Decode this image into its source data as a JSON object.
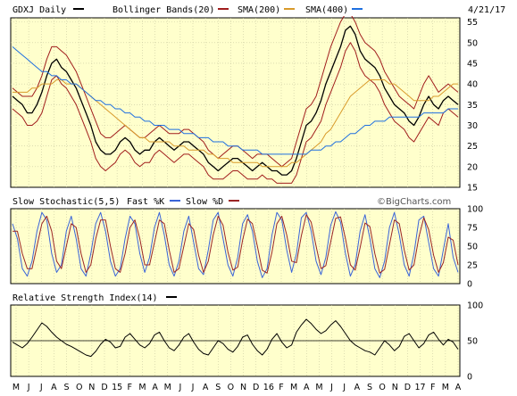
{
  "colors": {
    "plot_bg": "#ffffcc",
    "grid": "#c8c8a0",
    "price": "#000000",
    "bollinger": "#a01c1c",
    "sma200": "#d89a2a",
    "sma400": "#1e6fe0",
    "stoch_fast": "#3a64d8",
    "stoch_slow": "#9b2525",
    "rsi": "#000000"
  },
  "header": {
    "symbol": "GDXJ Daily",
    "bollinger": "Bollinger Bands(20)",
    "sma200": "SMA(200)",
    "sma400": "SMA(400)",
    "date": "4/21/17"
  },
  "stochastic_header": {
    "title": "Slow Stochastic(5,5)",
    "fast": "Fast %K",
    "slow": "Slow %D",
    "watermark": "©BigCharts.com"
  },
  "rsi_header": {
    "title": "Relative Strength Index(14)"
  },
  "x_axis_labels": [
    "M",
    "J",
    "J",
    "A",
    "S",
    "O",
    "N",
    "D",
    "15",
    "F",
    "M",
    "A",
    "M",
    "J",
    "J",
    "A",
    "S",
    "O",
    "N",
    "D",
    "16",
    "F",
    "M",
    "A",
    "M",
    "J",
    "J",
    "A",
    "S",
    "O",
    "N",
    "D",
    "17",
    "F",
    "M",
    "A"
  ],
  "chart_data": [
    {
      "type": "line",
      "panel": "price",
      "y_ticks": [
        15,
        20,
        25,
        30,
        35,
        40,
        45,
        50,
        55
      ],
      "ylim": [
        15,
        56
      ],
      "series": [
        {
          "name": "GDXJ Daily",
          "values": [
            37,
            36,
            35,
            33,
            33,
            35,
            38,
            42,
            45,
            46,
            44,
            43,
            41,
            39,
            36,
            33,
            30,
            26,
            24,
            23,
            23,
            24,
            26,
            27,
            26,
            24,
            23,
            24,
            24,
            26,
            27,
            26,
            25,
            24,
            25,
            26,
            26,
            25,
            24,
            23,
            21,
            20,
            19,
            20,
            21,
            22,
            22,
            21,
            20,
            19,
            20,
            21,
            20,
            19,
            19,
            18,
            18,
            19,
            22,
            26,
            30,
            31,
            33,
            36,
            40,
            43,
            46,
            49,
            53,
            54,
            52,
            48,
            46,
            45,
            44,
            42,
            39,
            37,
            35,
            34,
            33,
            31,
            30,
            32,
            35,
            37,
            35,
            34,
            36,
            37,
            36,
            35
          ]
        },
        {
          "name": "Bollinger Bands(20)",
          "values": [
            39,
            38,
            37,
            37,
            37,
            39,
            42,
            46,
            49,
            49,
            48,
            47,
            45,
            43,
            40,
            37,
            34,
            31,
            28,
            27,
            27,
            28,
            29,
            30,
            29,
            28,
            27,
            27,
            28,
            29,
            30,
            29,
            28,
            28,
            28,
            29,
            29,
            28,
            27,
            26,
            24,
            23,
            22,
            23,
            24,
            25,
            25,
            24,
            23,
            22,
            23,
            23,
            23,
            22,
            21,
            20,
            21,
            22,
            26,
            30,
            34,
            35,
            37,
            41,
            45,
            49,
            52,
            55,
            57,
            57,
            55,
            52,
            50,
            49,
            48,
            46,
            43,
            41,
            39,
            37,
            36,
            35,
            34,
            37,
            40,
            42,
            40,
            38,
            39,
            40,
            39,
            38
          ]
        },
        {
          "name": "Bollinger Bands(20)",
          "values": [
            34,
            33,
            32,
            30,
            30,
            31,
            33,
            37,
            41,
            42,
            40,
            39,
            37,
            35,
            32,
            29,
            26,
            22,
            20,
            19,
            20,
            21,
            23,
            24,
            23,
            21,
            20,
            21,
            21,
            23,
            24,
            23,
            22,
            21,
            22,
            23,
            23,
            22,
            21,
            20,
            18,
            17,
            17,
            17,
            18,
            19,
            19,
            18,
            17,
            17,
            17,
            18,
            17,
            17,
            16,
            16,
            16,
            16,
            18,
            22,
            26,
            27,
            29,
            31,
            35,
            38,
            41,
            44,
            48,
            50,
            48,
            44,
            42,
            41,
            40,
            38,
            35,
            33,
            31,
            30,
            29,
            27,
            26,
            28,
            30,
            32,
            31,
            30,
            33,
            34,
            33,
            32
          ]
        },
        {
          "name": "SMA(200)",
          "values": [
            38,
            38,
            38,
            38,
            39,
            39,
            40,
            40,
            40,
            41,
            41,
            40,
            40,
            40,
            39,
            38,
            37,
            36,
            35,
            34,
            33,
            32,
            31,
            30,
            29,
            28,
            27,
            27,
            26,
            26,
            26,
            26,
            26,
            25,
            25,
            25,
            24,
            24,
            24,
            24,
            23,
            23,
            22,
            22,
            22,
            21,
            21,
            21,
            21,
            21,
            21,
            20,
            20,
            20,
            20,
            20,
            20,
            21,
            21,
            22,
            23,
            24,
            25,
            26,
            28,
            29,
            31,
            33,
            35,
            37,
            38,
            39,
            40,
            41,
            41,
            41,
            41,
            40,
            40,
            39,
            38,
            37,
            36,
            36,
            36,
            36,
            37,
            37,
            38,
            39,
            40,
            40
          ]
        },
        {
          "name": "SMA(400)",
          "values": [
            49,
            48,
            47,
            46,
            45,
            44,
            43,
            43,
            42,
            42,
            41,
            41,
            40,
            40,
            39,
            38,
            37,
            36,
            36,
            35,
            35,
            34,
            34,
            33,
            33,
            32,
            32,
            31,
            31,
            30,
            30,
            30,
            29,
            29,
            29,
            28,
            28,
            28,
            27,
            27,
            27,
            26,
            26,
            26,
            25,
            25,
            25,
            24,
            24,
            24,
            24,
            23,
            23,
            23,
            23,
            23,
            23,
            23,
            23,
            23,
            23,
            24,
            24,
            24,
            25,
            25,
            26,
            26,
            27,
            28,
            28,
            29,
            30,
            30,
            31,
            31,
            31,
            32,
            32,
            32,
            32,
            32,
            32,
            32,
            33,
            33,
            33,
            33,
            33,
            34,
            34,
            34
          ]
        }
      ]
    },
    {
      "type": "line",
      "panel": "stochastic",
      "y_ticks": [
        0,
        25,
        50,
        75,
        100
      ],
      "ylim": [
        0,
        100
      ],
      "series": [
        {
          "name": "Fast %K",
          "values": [
            80,
            60,
            20,
            10,
            30,
            70,
            95,
            85,
            40,
            15,
            25,
            70,
            90,
            60,
            20,
            10,
            40,
            80,
            95,
            70,
            30,
            10,
            20,
            60,
            90,
            80,
            40,
            15,
            35,
            75,
            95,
            65,
            25,
            10,
            30,
            70,
            90,
            55,
            20,
            12,
            45,
            85,
            95,
            60,
            25,
            10,
            35,
            80,
            92,
            70,
            30,
            8,
            20,
            65,
            95,
            85,
            45,
            15,
            40,
            88,
            95,
            70,
            30,
            12,
            35,
            78,
            96,
            82,
            40,
            10,
            25,
            70,
            92,
            60,
            20,
            8,
            30,
            75,
            95,
            65,
            25,
            10,
            40,
            85,
            90,
            55,
            20,
            10,
            45,
            80,
            35,
            15
          ]
        },
        {
          "name": "Slow %D",
          "values": [
            70,
            70,
            40,
            20,
            20,
            50,
            80,
            90,
            70,
            30,
            20,
            50,
            80,
            75,
            40,
            15,
            25,
            60,
            85,
            85,
            50,
            20,
            15,
            40,
            75,
            85,
            60,
            25,
            25,
            55,
            85,
            80,
            45,
            15,
            20,
            50,
            80,
            72,
            38,
            15,
            30,
            65,
            90,
            78,
            42,
            18,
            22,
            58,
            86,
            80,
            50,
            18,
            14,
            42,
            80,
            90,
            65,
            30,
            28,
            64,
            92,
            82,
            50,
            20,
            24,
            56,
            87,
            89,
            60,
            25,
            18,
            48,
            81,
            76,
            40,
            14,
            19,
            52,
            85,
            80,
            45,
            18,
            25,
            62,
            88,
            72,
            38,
            15,
            28,
            62,
            58,
            25
          ]
        }
      ]
    },
    {
      "type": "line",
      "panel": "rsi",
      "y_ticks": [
        0,
        50,
        100
      ],
      "ylim": [
        0,
        100
      ],
      "series": [
        {
          "name": "Relative Strength Index(14)",
          "values": [
            48,
            44,
            40,
            46,
            55,
            65,
            75,
            70,
            62,
            55,
            50,
            45,
            42,
            38,
            34,
            30,
            28,
            35,
            45,
            52,
            48,
            40,
            42,
            55,
            60,
            52,
            44,
            40,
            46,
            58,
            62,
            50,
            40,
            36,
            44,
            55,
            60,
            48,
            38,
            32,
            30,
            40,
            50,
            46,
            38,
            34,
            42,
            55,
            58,
            45,
            36,
            30,
            38,
            52,
            60,
            48,
            40,
            44,
            62,
            72,
            80,
            74,
            66,
            60,
            64,
            72,
            78,
            70,
            60,
            50,
            44,
            40,
            36,
            34,
            30,
            40,
            50,
            44,
            36,
            42,
            56,
            60,
            50,
            40,
            46,
            58,
            62,
            52,
            44,
            52,
            48,
            38
          ]
        }
      ]
    }
  ]
}
